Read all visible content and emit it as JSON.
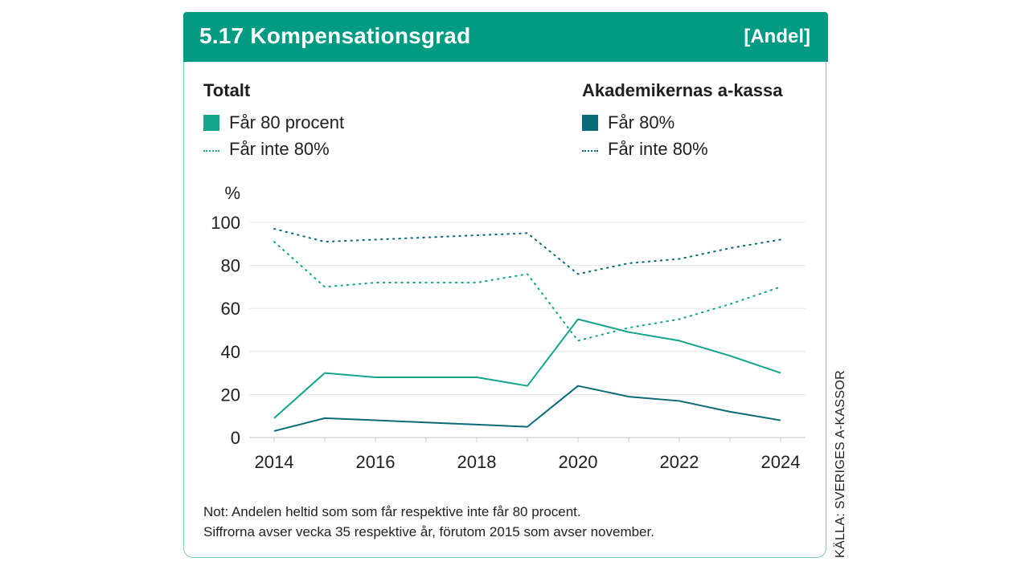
{
  "header": {
    "title": "5.17  Kompensationsgrad",
    "unit": "[Andel]"
  },
  "legend": {
    "left": {
      "title": "Totalt",
      "items": [
        {
          "label": "Får 80 procent",
          "kind": "solid",
          "color": "#14a38b"
        },
        {
          "label": "Får inte 80%",
          "kind": "dotted",
          "color": "#14a38b"
        }
      ]
    },
    "right": {
      "title": "Akademikernas a-kassa",
      "items": [
        {
          "label": "Får 80%",
          "kind": "solid",
          "color": "#0a6b78"
        },
        {
          "label": "Får inte 80%",
          "kind": "dotted",
          "color": "#0a6b78"
        }
      ]
    }
  },
  "chart_data": {
    "type": "line",
    "ylabel": "%",
    "ylim": [
      0,
      100
    ],
    "yticks": [
      0,
      20,
      40,
      60,
      80,
      100
    ],
    "xlim": [
      2014,
      2024
    ],
    "xticks": [
      2014,
      2016,
      2018,
      2020,
      2022,
      2024
    ],
    "x": [
      2014,
      2015,
      2016,
      2017,
      2018,
      2019,
      2020,
      2021,
      2022,
      2023,
      2024
    ],
    "grid": true,
    "series": [
      {
        "name": "Får 80 procent",
        "group": "Totalt",
        "style": "solid",
        "color": "#14a38b",
        "values": [
          9,
          30,
          28,
          28,
          28,
          24,
          55,
          49,
          45,
          38,
          30
        ]
      },
      {
        "name": "Får inte 80%",
        "group": "Totalt",
        "style": "dotted",
        "color": "#14a38b",
        "values": [
          91,
          70,
          72,
          72,
          72,
          76,
          45,
          51,
          55,
          62,
          70
        ]
      },
      {
        "name": "Får 80%",
        "group": "Akademikernas a-kassa",
        "style": "solid",
        "color": "#0a6b78",
        "values": [
          3,
          9,
          8,
          7,
          6,
          5,
          24,
          19,
          17,
          12,
          8
        ]
      },
      {
        "name": "Får inte 80%",
        "group": "Akademikernas a-kassa",
        "style": "dotted",
        "color": "#0a6b78",
        "values": [
          97,
          91,
          92,
          93,
          94,
          95,
          76,
          81,
          83,
          88,
          92
        ]
      }
    ]
  },
  "note": {
    "line1": "Not: Andelen heltid som som får respektive inte får 80 procent.",
    "line2": "Siffrorna avser vecka 35 respektive år, förutom 2015 som avser november."
  },
  "source": "KÄLLA: SVERIGES A-KASSOR"
}
